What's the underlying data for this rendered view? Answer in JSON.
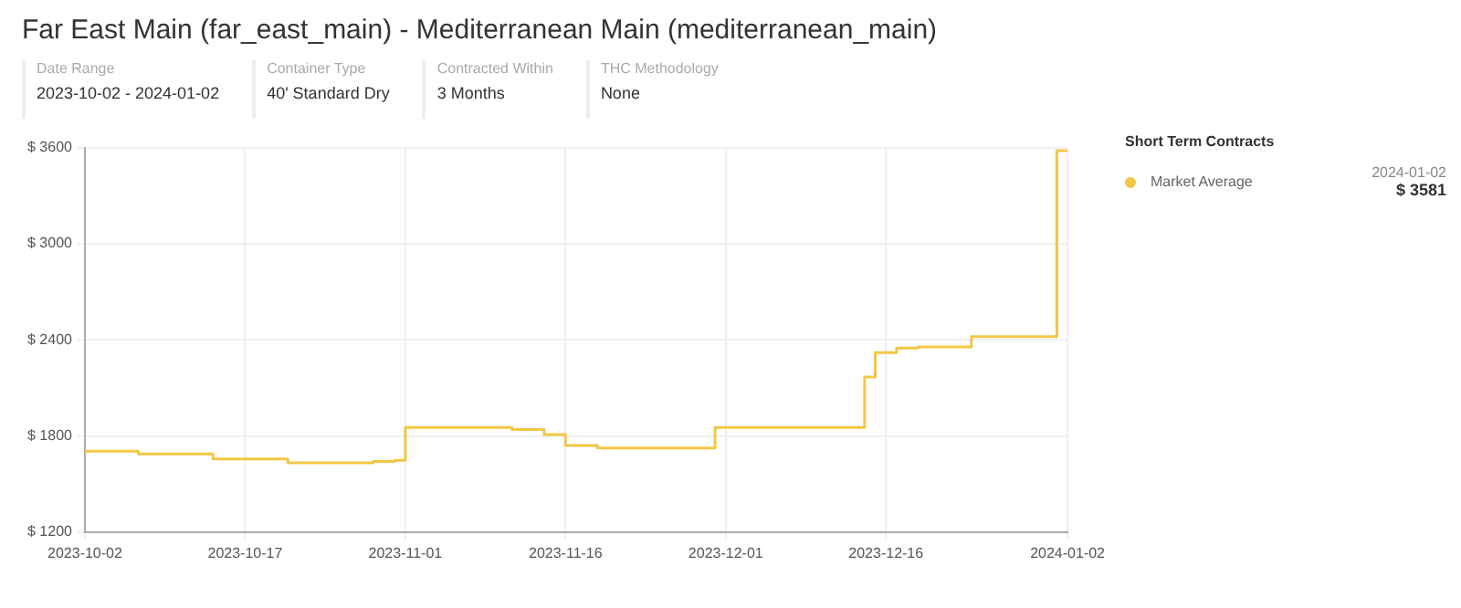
{
  "chart_data": {
    "type": "step",
    "title": "Far East Main (far_east_main) - Mediterranean Main (mediterranean_main)",
    "legend_title": "Short Term Contracts",
    "annotations": [
      "Date Range",
      "2023-10-02 - 2024-01-02",
      "Container Type",
      "40' Standard Dry",
      "Contracted Within",
      "3 Months",
      "THC Methodology",
      "None",
      "2024-01-02",
      "$ 3581"
    ],
    "x": [
      "2023-10-02",
      "2023-10-07",
      "2023-10-14",
      "2023-10-21",
      "2023-10-29",
      "2023-10-31",
      "2023-11-01",
      "2023-11-11",
      "2023-11-14",
      "2023-11-16",
      "2023-11-19",
      "2023-11-30",
      "2023-12-14",
      "2023-12-15",
      "2023-12-17",
      "2023-12-19",
      "2023-12-24",
      "2024-01-01",
      "2024-01-02"
    ],
    "series": [
      {
        "name": "Market Average",
        "color": "#f2c744",
        "values": [
          1704,
          1688,
          1656,
          1632,
          1640,
          1648,
          1852,
          1840,
          1808,
          1740,
          1724,
          1852,
          2168,
          2320,
          2348,
          2356,
          2420,
          3581,
          3581
        ]
      }
    ],
    "xlim": [
      "2023-10-02",
      "2024-01-02"
    ],
    "xticks": [
      "2023-10-02",
      "2023-10-17",
      "2023-11-01",
      "2023-11-16",
      "2023-12-01",
      "2023-12-16",
      "2024-01-02"
    ],
    "ylim": [
      1200,
      3600
    ],
    "yticks": [
      {
        "value": 1200,
        "label": "$ 1200"
      },
      {
        "value": 1800,
        "label": "$ 1800"
      },
      {
        "value": 2400,
        "label": "$ 2400"
      },
      {
        "value": 3000,
        "label": "$ 3000"
      },
      {
        "value": 3600,
        "label": "$ 3600"
      }
    ],
    "grid": true,
    "legend": "right",
    "marker": "none",
    "line_style": "solid"
  }
}
